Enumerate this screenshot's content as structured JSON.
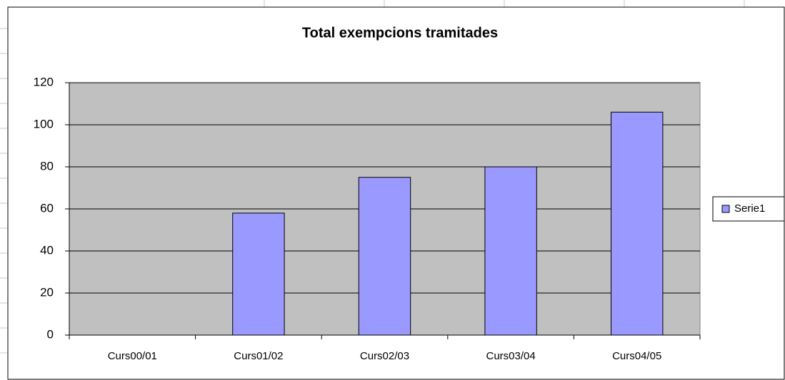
{
  "chart_data": {
    "type": "bar",
    "title": "Total exempcions tramitades",
    "categories": [
      "Curs00/01",
      "Curs01/02",
      "Curs02/03",
      "Curs03/04",
      "Curs04/05"
    ],
    "series": [
      {
        "name": "Serie1",
        "color": "#9999ff",
        "values": [
          0,
          58,
          75,
          80,
          106
        ]
      }
    ],
    "ylim": [
      0,
      120
    ],
    "yticks": [
      0,
      20,
      40,
      60,
      80,
      100,
      120
    ],
    "grid": true,
    "legend": "right"
  }
}
